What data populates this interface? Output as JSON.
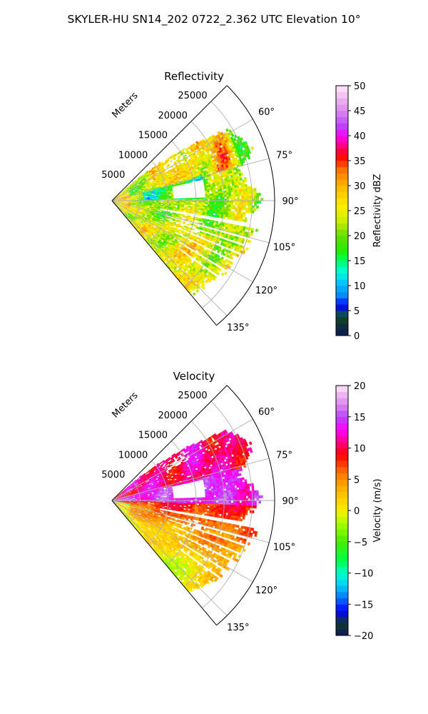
{
  "figure": {
    "suptitle": "SKYLER-HU  SN14_202  0722_2.362 UTC Elevation 10°"
  },
  "chart_data": [
    {
      "type": "heatmap",
      "projection": "polar-sector",
      "title": "Reflectivity",
      "radial_axis_label": "Meters",
      "radial_ticks": [
        5000,
        10000,
        15000,
        20000,
        25000
      ],
      "radial_tick_labels": [
        "5000",
        "10000",
        "15000",
        "20000",
        "25000"
      ],
      "rlim": [
        0,
        29000
      ],
      "theta_range_deg": [
        45,
        140
      ],
      "theta_ticks": [
        60,
        75,
        90,
        105,
        120,
        135
      ],
      "theta_tick_labels": [
        "60°",
        "75°",
        "90°",
        "105°",
        "120°",
        "135°"
      ],
      "grid": true,
      "colorbar": {
        "label": "Reflectivity dBZ",
        "range": [
          0,
          50
        ],
        "ticks": [
          0,
          5,
          10,
          15,
          20,
          25,
          30,
          35,
          40,
          45,
          50
        ],
        "tick_labels": [
          "0",
          "5",
          "10",
          "15",
          "20",
          "25",
          "30",
          "35",
          "40",
          "45",
          "50"
        ],
        "colormap": [
          {
            "v": 0,
            "c": "#0b1a5a"
          },
          {
            "v": 3,
            "c": "#123a2a"
          },
          {
            "v": 4,
            "c": "#0d5a3a"
          },
          {
            "v": 6,
            "c": "#0000ff"
          },
          {
            "v": 8,
            "c": "#0088ff"
          },
          {
            "v": 11,
            "c": "#00cfff"
          },
          {
            "v": 13,
            "c": "#00ffd0"
          },
          {
            "v": 15,
            "c": "#00ff66"
          },
          {
            "v": 17,
            "c": "#22ee00"
          },
          {
            "v": 20,
            "c": "#66dd00"
          },
          {
            "v": 23,
            "c": "#ccee00"
          },
          {
            "v": 26,
            "c": "#ffee00"
          },
          {
            "v": 30,
            "c": "#ffb400"
          },
          {
            "v": 33,
            "c": "#ff7700"
          },
          {
            "v": 36,
            "c": "#ff0000"
          },
          {
            "v": 38,
            "c": "#ff0080"
          },
          {
            "v": 40,
            "c": "#ff00ff"
          },
          {
            "v": 42,
            "c": "#bb44ff"
          },
          {
            "v": 45,
            "c": "#dd88ee"
          },
          {
            "v": 48,
            "c": "#f2c2f2"
          },
          {
            "v": 50,
            "c": "#ffe8ff"
          }
        ]
      },
      "field_summary": [
        {
          "theta_range": [
            50,
            75
          ],
          "r_range": [
            8000,
            22000
          ],
          "value": 30
        },
        {
          "theta_range": [
            75,
            90
          ],
          "r_range": [
            3000,
            15000
          ],
          "value": 18
        },
        {
          "theta_range": [
            90,
            108
          ],
          "r_range": [
            3000,
            26000
          ],
          "value": 22
        },
        {
          "theta_range": [
            108,
            140
          ],
          "r_range": [
            4000,
            25000
          ],
          "value": 24
        }
      ]
    },
    {
      "type": "heatmap",
      "projection": "polar-sector",
      "title": "Velocity",
      "radial_axis_label": "Meters",
      "radial_ticks": [
        5000,
        10000,
        15000,
        20000,
        25000
      ],
      "radial_tick_labels": [
        "5000",
        "10000",
        "15000",
        "20000",
        "25000"
      ],
      "rlim": [
        0,
        29000
      ],
      "theta_range_deg": [
        45,
        140
      ],
      "theta_ticks": [
        60,
        75,
        90,
        105,
        120,
        135
      ],
      "theta_tick_labels": [
        "60°",
        "75°",
        "90°",
        "105°",
        "120°",
        "135°"
      ],
      "grid": true,
      "colorbar": {
        "label": "Velocity (m/s)",
        "range": [
          -20,
          20
        ],
        "ticks": [
          -20,
          -15,
          -10,
          -5,
          0,
          5,
          10,
          15,
          20
        ],
        "tick_labels": [
          "−20",
          "−15",
          "−10",
          "−5",
          "0",
          "5",
          "10",
          "15",
          "20"
        ],
        "colormap": [
          {
            "v": -20,
            "c": "#0b1a5a"
          },
          {
            "v": -18,
            "c": "#123a2a"
          },
          {
            "v": -16,
            "c": "#0000ff"
          },
          {
            "v": -14,
            "c": "#0077ff"
          },
          {
            "v": -12,
            "c": "#00ccff"
          },
          {
            "v": -10,
            "c": "#00ffcc"
          },
          {
            "v": -8,
            "c": "#00ff44"
          },
          {
            "v": -5,
            "c": "#44ee00"
          },
          {
            "v": -2,
            "c": "#aaff00"
          },
          {
            "v": 0,
            "c": "#ffee00"
          },
          {
            "v": 3,
            "c": "#ffbb00"
          },
          {
            "v": 6,
            "c": "#ff7700"
          },
          {
            "v": 9,
            "c": "#ff0000"
          },
          {
            "v": 11,
            "c": "#ff0088"
          },
          {
            "v": 13,
            "c": "#ff00ff"
          },
          {
            "v": 15,
            "c": "#bb44ff"
          },
          {
            "v": 17,
            "c": "#dd88ee"
          },
          {
            "v": 19,
            "c": "#f2c2f2"
          },
          {
            "v": 20,
            "c": "#ffe8ff"
          }
        ]
      },
      "field_summary": [
        {
          "theta_range": [
            50,
            75
          ],
          "r_range": [
            8000,
            22000
          ],
          "value": 10
        },
        {
          "theta_range": [
            75,
            92
          ],
          "r_range": [
            2000,
            25000
          ],
          "value": 14
        },
        {
          "theta_range": [
            92,
            110
          ],
          "r_range": [
            3000,
            26000
          ],
          "value": 8
        },
        {
          "theta_range": [
            110,
            140
          ],
          "r_range": [
            3000,
            25000
          ],
          "value": 2
        }
      ]
    }
  ]
}
